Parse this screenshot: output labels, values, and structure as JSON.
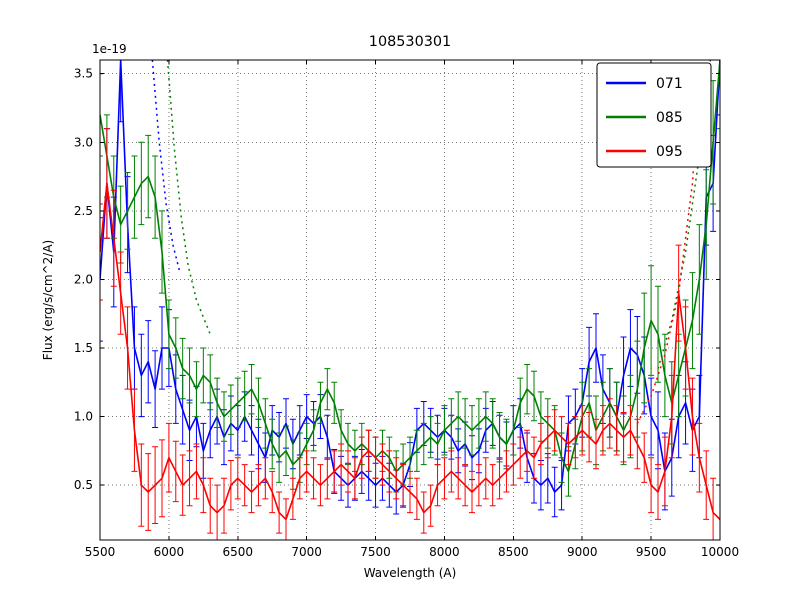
{
  "chart_data": {
    "type": "line",
    "title": "108530301",
    "xlabel": "Wavelength (A)",
    "ylabel": "Flux (erg/s/cm^2/A)",
    "y_offset_text": "1e-19",
    "y_scale": 1e-19,
    "xlim": [
      5500,
      10000
    ],
    "ylim": [
      0.1,
      3.6
    ],
    "grid": true,
    "legend_position": "upper right",
    "xticks": [
      5500,
      6000,
      6500,
      7000,
      7500,
      8000,
      8500,
      9000,
      9500,
      10000
    ],
    "xtick_labels": [
      "5500",
      "6000",
      "6500",
      "7000",
      "7500",
      "8000",
      "8500",
      "9000",
      "9500",
      "10000"
    ],
    "yticks": [
      0.5,
      1.0,
      1.5,
      2.0,
      2.5,
      3.0,
      3.5
    ],
    "ytick_labels": [
      "0.5",
      "1.0",
      "1.5",
      "2.0",
      "2.5",
      "3.0",
      "3.5"
    ],
    "x_start": 5500,
    "x_step": 50,
    "series": [
      {
        "name": "071",
        "color": "#0000ff",
        "values": [
          2.0,
          2.7,
          2.2,
          3.6,
          2.4,
          1.5,
          1.3,
          1.4,
          1.2,
          1.5,
          1.5,
          1.2,
          1.05,
          0.9,
          1.0,
          0.75,
          0.9,
          1.0,
          0.85,
          0.95,
          0.9,
          1.0,
          0.9,
          0.8,
          0.7,
          0.9,
          0.85,
          0.95,
          0.8,
          0.9,
          1.0,
          0.95,
          1.0,
          0.85,
          0.6,
          0.55,
          0.5,
          0.55,
          0.6,
          0.55,
          0.5,
          0.55,
          0.5,
          0.45,
          0.5,
          0.65,
          0.9,
          0.95,
          0.9,
          0.85,
          0.9,
          0.85,
          0.75,
          0.8,
          0.7,
          0.75,
          0.9,
          0.95,
          0.85,
          0.8,
          0.9,
          0.95,
          0.7,
          0.55,
          0.5,
          0.55,
          0.45,
          0.5,
          0.95,
          1.0,
          1.1,
          1.4,
          1.5,
          1.2,
          1.1,
          1.0,
          1.3,
          1.5,
          1.45,
          1.3,
          1.0,
          0.9,
          0.6,
          0.7,
          1.0,
          1.1,
          0.9,
          1.0,
          2.6,
          2.7,
          3.6
        ],
        "errors": [
          0.45,
          0.4,
          0.4,
          0.45,
          0.35,
          0.3,
          0.3,
          0.3,
          0.28,
          0.3,
          0.28,
          0.25,
          0.25,
          0.22,
          0.22,
          0.2,
          0.2,
          0.2,
          0.2,
          0.2,
          0.18,
          0.18,
          0.18,
          0.18,
          0.18,
          0.18,
          0.18,
          0.18,
          0.18,
          0.18,
          0.16,
          0.16,
          0.16,
          0.16,
          0.16,
          0.16,
          0.16,
          0.16,
          0.16,
          0.16,
          0.16,
          0.16,
          0.16,
          0.16,
          0.16,
          0.16,
          0.16,
          0.16,
          0.16,
          0.16,
          0.16,
          0.16,
          0.16,
          0.16,
          0.16,
          0.16,
          0.16,
          0.16,
          0.16,
          0.16,
          0.18,
          0.18,
          0.18,
          0.18,
          0.18,
          0.18,
          0.18,
          0.18,
          0.2,
          0.2,
          0.25,
          0.25,
          0.25,
          0.25,
          0.25,
          0.25,
          0.28,
          0.28,
          0.28,
          0.28,
          0.28,
          0.28,
          0.28,
          0.28,
          0.3,
          0.3,
          0.3,
          0.3,
          0.35,
          0.35,
          0.4
        ]
      },
      {
        "name": "085",
        "color": "#008000",
        "values": [
          3.2,
          2.9,
          2.6,
          2.4,
          2.5,
          2.6,
          2.7,
          2.75,
          2.6,
          2.2,
          1.6,
          1.5,
          1.35,
          1.3,
          1.2,
          1.3,
          1.25,
          1.1,
          1.0,
          1.05,
          1.1,
          1.15,
          1.2,
          1.1,
          0.95,
          0.8,
          0.7,
          0.75,
          0.65,
          0.7,
          0.8,
          0.9,
          1.1,
          1.2,
          1.1,
          0.9,
          0.8,
          0.75,
          0.8,
          0.75,
          0.7,
          0.75,
          0.7,
          0.6,
          0.65,
          0.7,
          0.75,
          0.8,
          0.85,
          0.8,
          0.9,
          0.95,
          1.0,
          0.95,
          0.9,
          0.95,
          1.0,
          0.95,
          0.85,
          0.8,
          0.9,
          1.1,
          1.2,
          1.15,
          1.0,
          0.95,
          0.9,
          0.7,
          0.6,
          0.8,
          1.0,
          1.1,
          0.9,
          1.0,
          1.1,
          1.0,
          0.9,
          1.0,
          1.2,
          1.5,
          1.7,
          1.6,
          1.3,
          1.1,
          1.3,
          1.5,
          1.7,
          2.0,
          2.4,
          3.0,
          3.6
        ],
        "errors": [
          0.3,
          0.3,
          0.3,
          0.28,
          0.28,
          0.3,
          0.3,
          0.3,
          0.3,
          0.3,
          0.25,
          0.22,
          0.22,
          0.2,
          0.2,
          0.2,
          0.2,
          0.18,
          0.18,
          0.18,
          0.18,
          0.18,
          0.18,
          0.18,
          0.18,
          0.18,
          0.18,
          0.18,
          0.18,
          0.18,
          0.15,
          0.15,
          0.15,
          0.15,
          0.15,
          0.15,
          0.15,
          0.15,
          0.15,
          0.15,
          0.15,
          0.15,
          0.15,
          0.15,
          0.15,
          0.15,
          0.15,
          0.15,
          0.15,
          0.15,
          0.18,
          0.18,
          0.18,
          0.18,
          0.18,
          0.18,
          0.18,
          0.18,
          0.18,
          0.18,
          0.18,
          0.18,
          0.18,
          0.18,
          0.18,
          0.18,
          0.18,
          0.18,
          0.18,
          0.18,
          0.25,
          0.25,
          0.25,
          0.25,
          0.25,
          0.25,
          0.25,
          0.3,
          0.35,
          0.4,
          0.4,
          0.35,
          0.3,
          0.3,
          0.3,
          0.35,
          0.35,
          0.4,
          0.4,
          0.45,
          0.5
        ]
      },
      {
        "name": "095",
        "color": "#ff0000",
        "values": [
          2.2,
          2.7,
          2.3,
          1.9,
          1.5,
          0.9,
          0.5,
          0.45,
          0.5,
          0.55,
          0.7,
          0.6,
          0.5,
          0.55,
          0.6,
          0.5,
          0.35,
          0.3,
          0.35,
          0.5,
          0.55,
          0.5,
          0.45,
          0.5,
          0.55,
          0.45,
          0.3,
          0.25,
          0.4,
          0.55,
          0.6,
          0.55,
          0.5,
          0.55,
          0.6,
          0.65,
          0.6,
          0.55,
          0.7,
          0.75,
          0.7,
          0.65,
          0.6,
          0.55,
          0.5,
          0.45,
          0.4,
          0.3,
          0.35,
          0.5,
          0.55,
          0.6,
          0.55,
          0.5,
          0.45,
          0.5,
          0.55,
          0.5,
          0.55,
          0.6,
          0.65,
          0.7,
          0.75,
          0.7,
          0.8,
          0.85,
          0.9,
          0.85,
          0.8,
          0.85,
          0.9,
          0.85,
          0.8,
          0.9,
          0.95,
          0.9,
          0.85,
          0.9,
          0.8,
          0.7,
          0.5,
          0.45,
          0.6,
          1.0,
          1.9,
          1.5,
          1.0,
          0.7,
          0.5,
          0.3,
          0.25
        ],
        "errors": [
          0.35,
          0.4,
          0.35,
          0.3,
          0.3,
          0.3,
          0.3,
          0.28,
          0.28,
          0.28,
          0.25,
          0.22,
          0.22,
          0.2,
          0.2,
          0.2,
          0.2,
          0.2,
          0.2,
          0.18,
          0.15,
          0.15,
          0.15,
          0.15,
          0.15,
          0.15,
          0.15,
          0.15,
          0.15,
          0.15,
          0.15,
          0.15,
          0.15,
          0.15,
          0.15,
          0.15,
          0.15,
          0.15,
          0.15,
          0.15,
          0.15,
          0.15,
          0.15,
          0.15,
          0.15,
          0.15,
          0.15,
          0.15,
          0.15,
          0.15,
          0.15,
          0.15,
          0.15,
          0.15,
          0.15,
          0.15,
          0.15,
          0.15,
          0.15,
          0.15,
          0.15,
          0.15,
          0.15,
          0.15,
          0.15,
          0.15,
          0.15,
          0.15,
          0.15,
          0.15,
          0.18,
          0.18,
          0.18,
          0.18,
          0.18,
          0.18,
          0.18,
          0.18,
          0.18,
          0.18,
          0.2,
          0.2,
          0.25,
          0.3,
          0.35,
          0.3,
          0.28,
          0.25,
          0.25,
          0.25,
          0.25
        ]
      }
    ],
    "dotted_overlays": [
      {
        "name": "071-model-left",
        "color": "#0000ff",
        "x": [
          5880,
          5930,
          5980,
          6030,
          6080
        ],
        "y": [
          3.6,
          3.0,
          2.55,
          2.25,
          2.05
        ]
      },
      {
        "name": "085-model-left",
        "color": "#008000",
        "x": [
          5990,
          6040,
          6090,
          6140,
          6200,
          6300
        ],
        "y": [
          3.6,
          2.95,
          2.45,
          2.1,
          1.85,
          1.6
        ]
      },
      {
        "name": "085-model-right",
        "color": "#008000",
        "x": [
          9550,
          9650,
          9750,
          9850,
          9930
        ],
        "y": [
          1.35,
          1.7,
          2.2,
          2.9,
          3.6
        ]
      },
      {
        "name": "095-model-right",
        "color": "#ff0000",
        "x": [
          9400,
          9500,
          9600,
          9700,
          9800,
          9860
        ],
        "y": [
          0.95,
          1.15,
          1.45,
          1.9,
          2.7,
          3.6
        ]
      }
    ]
  },
  "colors": {
    "frame": "#000000",
    "grid": "#777777",
    "background": "#ffffff",
    "series_071": "#0000ff",
    "series_085": "#008000",
    "series_095": "#ff0000"
  }
}
